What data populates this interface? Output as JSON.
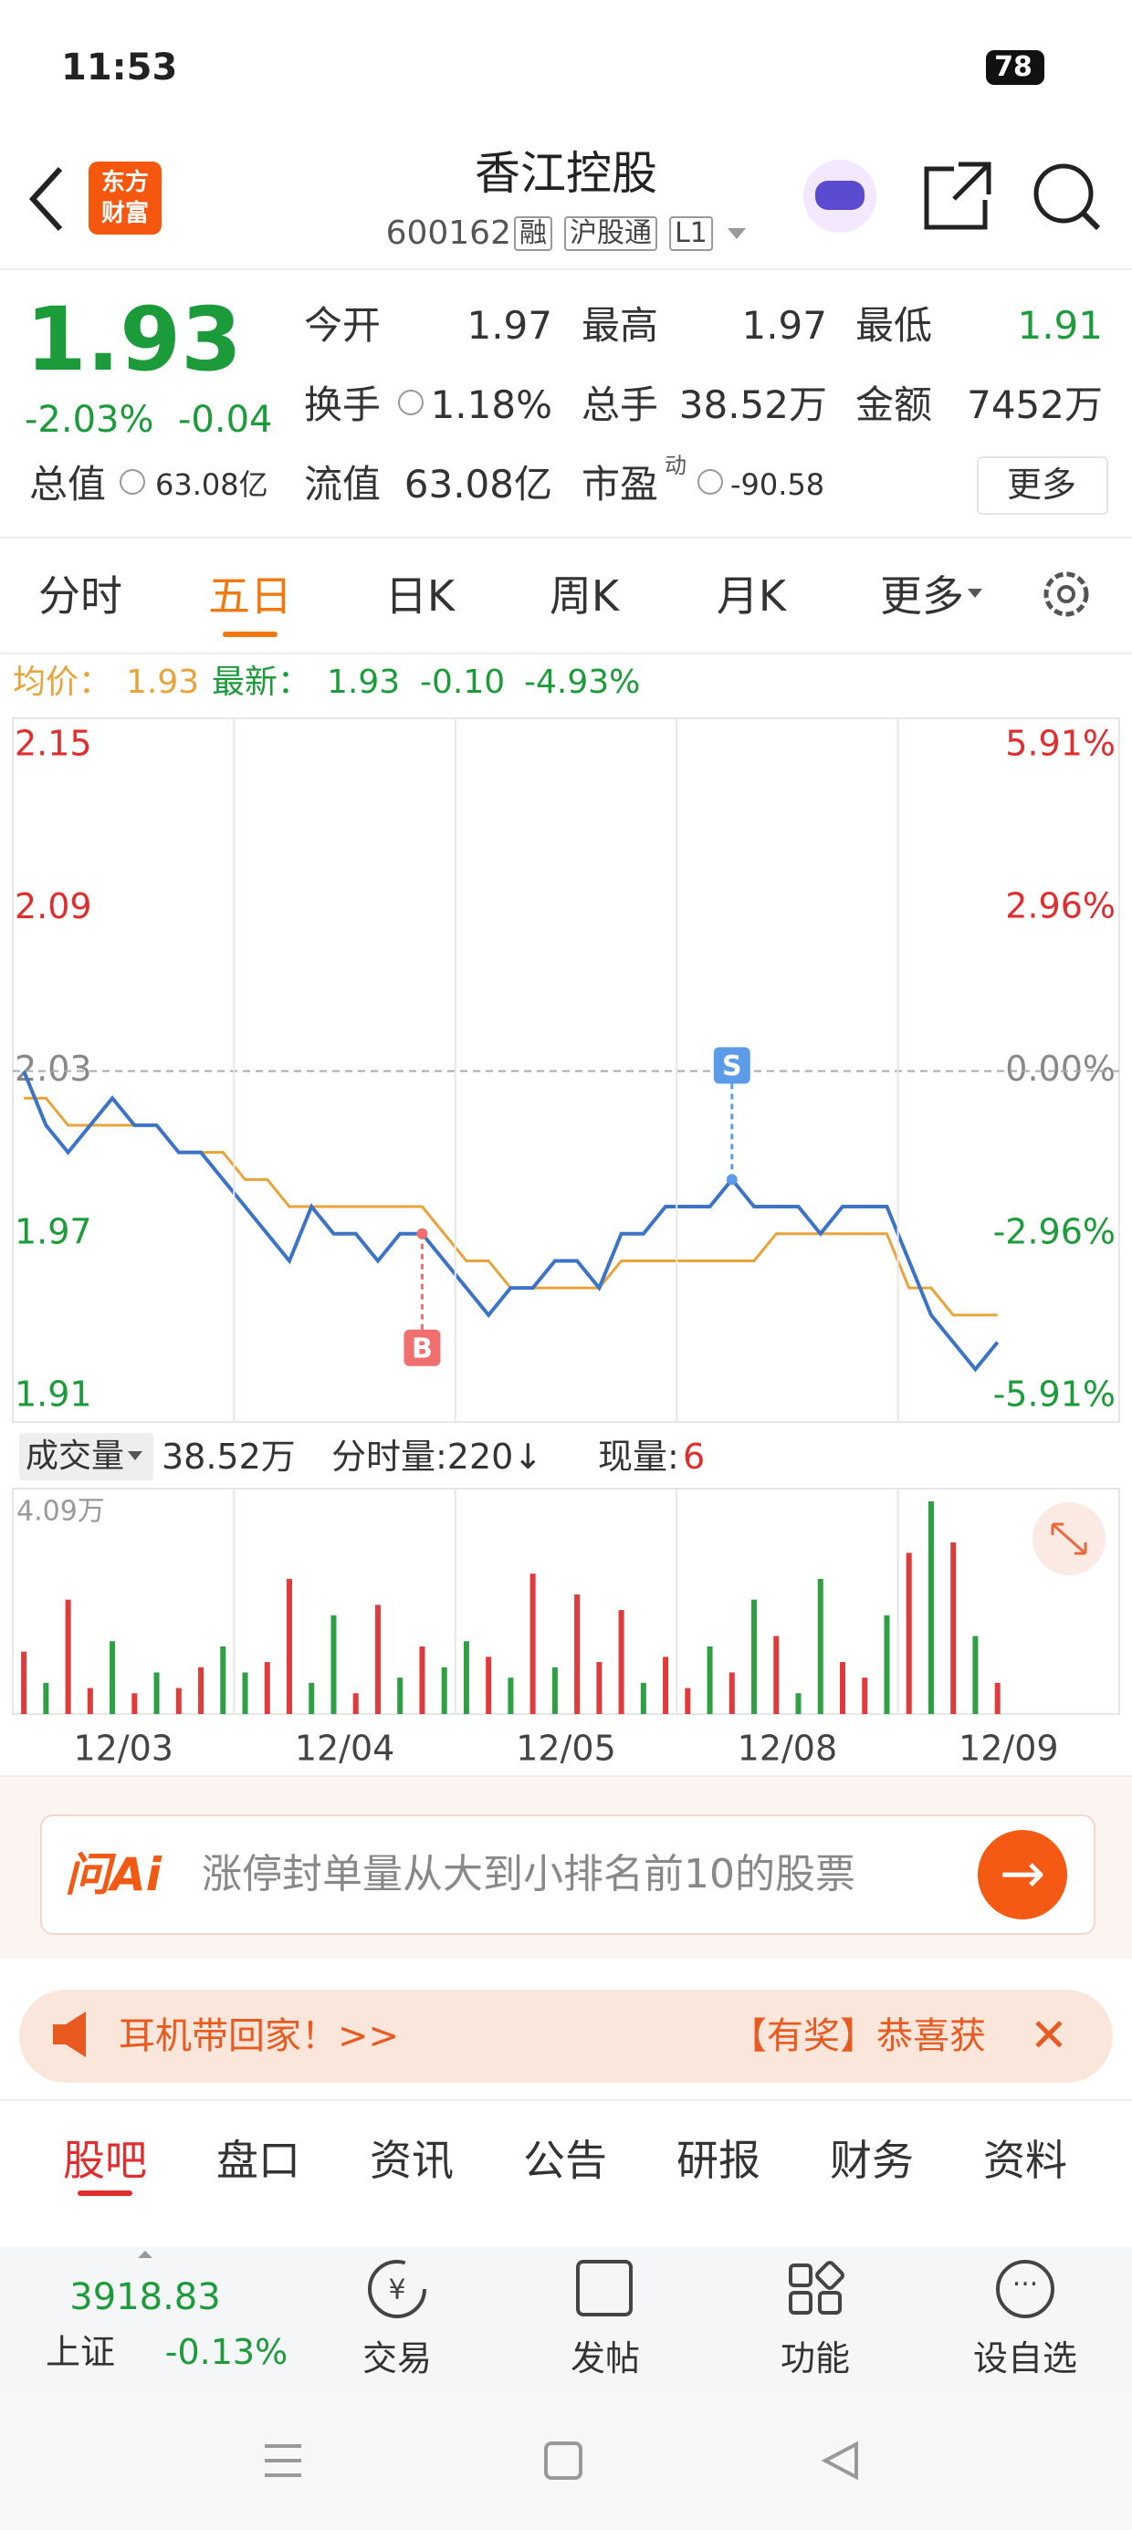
{
  "status_bar": {
    "time": "11:53",
    "battery": "78"
  },
  "header": {
    "logo": [
      "东方",
      "财富"
    ],
    "title": "香江控股",
    "code": "600162",
    "tags": [
      "融",
      "沪股通",
      "L1"
    ]
  },
  "quote": {
    "price": "1.93",
    "change_pct": "-2.03%",
    "change": "-0.04",
    "fields": [
      {
        "label": "今开",
        "value": "1.97"
      },
      {
        "label": "最高",
        "value": "1.97"
      },
      {
        "label": "最低",
        "value": "1.91"
      },
      {
        "label": "换手",
        "value": "1.18%"
      },
      {
        "label": "总手",
        "value": "38.52万"
      },
      {
        "label": "金额",
        "value": "7452万"
      },
      {
        "label": "总值",
        "value": "63.08亿"
      },
      {
        "label": "流值",
        "value": "63.08亿"
      },
      {
        "label": "市盈",
        "label_sup": "动",
        "value": "-90.58"
      }
    ],
    "more": "更多"
  },
  "tabs": {
    "items": [
      "分时",
      "五日",
      "日K",
      "周K",
      "月K",
      "更多"
    ],
    "active": 1
  },
  "chart_info": {
    "avg_label": "均价：",
    "avg": "1.93",
    "latest_label": "最新：",
    "latest": "1.93",
    "change": "-0.10",
    "change_pct": "-4.93%"
  },
  "chart_data": [
    {
      "type": "line",
      "ylim": [
        1.91,
        2.15
      ],
      "yticks": [
        2.15,
        2.09,
        2.03,
        1.97,
        1.91
      ],
      "y2lim": [
        -5.91,
        5.91
      ],
      "y2ticks": [
        {
          "value": 5.91,
          "label": "5.91%"
        },
        {
          "value": 2.96,
          "label": "2.96%"
        },
        {
          "value": 0,
          "label": "0.00%"
        },
        {
          "value": -2.96,
          "label": "-2.96%"
        },
        {
          "value": -5.91,
          "label": "-5.91%"
        }
      ],
      "up_color": "#e02d2d",
      "down_color": "#1c9b3a",
      "zero_color": "#888888",
      "xlim": [
        -0.5,
        49.5
      ],
      "x": [
        0,
        1,
        2,
        3,
        4,
        5,
        6,
        7,
        8,
        9,
        10,
        11,
        12,
        13,
        14,
        15,
        16,
        17,
        18,
        19,
        20,
        21,
        22,
        23,
        24,
        25,
        26,
        27,
        28,
        29,
        30,
        31,
        32,
        33,
        34,
        35,
        36,
        37,
        38,
        39,
        40,
        41,
        42,
        43,
        44
      ],
      "series": [
        {
          "color": "#3b73c6",
          "values": [
            2.03,
            2.01,
            2.0,
            2.01,
            2.02,
            2.01,
            2.01,
            2.0,
            2.0,
            1.99,
            1.98,
            1.97,
            1.96,
            1.98,
            1.97,
            1.97,
            1.96,
            1.97,
            1.97,
            1.96,
            1.95,
            1.94,
            1.95,
            1.95,
            1.96,
            1.96,
            1.95,
            1.97,
            1.97,
            1.98,
            1.98,
            1.98,
            1.99,
            1.98,
            1.98,
            1.98,
            1.97,
            1.98,
            1.98,
            1.98,
            1.96,
            1.94,
            1.93,
            1.92,
            1.93
          ]
        },
        {
          "color": "#e8a33a",
          "values": [
            2.02,
            2.02,
            2.01,
            2.01,
            2.01,
            2.01,
            2.01,
            2.0,
            2.0,
            2.0,
            1.99,
            1.99,
            1.98,
            1.98,
            1.98,
            1.98,
            1.98,
            1.98,
            1.98,
            1.97,
            1.96,
            1.96,
            1.95,
            1.95,
            1.95,
            1.95,
            1.95,
            1.96,
            1.96,
            1.96,
            1.96,
            1.96,
            1.96,
            1.96,
            1.97,
            1.97,
            1.97,
            1.97,
            1.97,
            1.97,
            1.95,
            1.95,
            1.94,
            1.94,
            1.94
          ]
        }
      ],
      "annotations": [
        {
          "text": "B",
          "color": "#f07070",
          "x": 18,
          "y": 1.97,
          "side": "below"
        },
        {
          "text": "S",
          "color": "#5b9be8",
          "x": 32,
          "y": 1.99,
          "side": "above"
        }
      ]
    },
    {
      "type": "bar",
      "ylim": [
        0,
        4.09
      ],
      "yticks": [
        {
          "value": 4.09,
          "label": "4.09万"
        }
      ],
      "xlim": [
        -0.5,
        49.5
      ],
      "xticks": [
        {
          "value": 4.5,
          "label": "12/03"
        },
        {
          "value": 14.5,
          "label": "12/04"
        },
        {
          "value": 24.5,
          "label": "12/05"
        },
        {
          "value": 34.5,
          "label": "12/08"
        },
        {
          "value": 44.5,
          "label": "12/09"
        }
      ],
      "x": [
        0,
        1,
        2,
        3,
        4,
        5,
        6,
        7,
        8,
        9,
        10,
        11,
        12,
        13,
        14,
        15,
        16,
        17,
        18,
        19,
        20,
        21,
        22,
        23,
        24,
        25,
        26,
        27,
        28,
        29,
        30,
        31,
        32,
        33,
        34,
        35,
        36,
        37,
        38,
        39,
        40,
        41,
        42,
        43,
        44
      ],
      "values": [
        1.2,
        0.6,
        2.2,
        0.5,
        1.4,
        0.4,
        0.8,
        0.5,
        0.9,
        1.3,
        0.8,
        1.0,
        2.6,
        0.6,
        1.9,
        0.4,
        2.1,
        0.7,
        1.3,
        0.9,
        1.4,
        1.1,
        0.7,
        2.7,
        0.9,
        2.3,
        1.0,
        2.0,
        0.6,
        1.1,
        0.5,
        1.3,
        0.8,
        2.2,
        1.5,
        0.4,
        2.6,
        1.0,
        0.7,
        1.9,
        3.1,
        4.09,
        3.3,
        1.5,
        0.6
      ],
      "colors": [
        "#e03a3a",
        "#2ea043",
        "#e03a3a",
        "#e03a3a",
        "#2ea043",
        "#e03a3a",
        "#2ea043",
        "#e03a3a",
        "#e03a3a",
        "#2ea043",
        "#2ea043",
        "#e03a3a",
        "#e03a3a",
        "#2ea043",
        "#2ea043",
        "#e03a3a",
        "#e03a3a",
        "#2ea043",
        "#e03a3a",
        "#2ea043",
        "#2ea043",
        "#e03a3a",
        "#2ea043",
        "#e03a3a",
        "#2ea043",
        "#e03a3a",
        "#e03a3a",
        "#e03a3a",
        "#2ea043",
        "#e03a3a",
        "#e03a3a",
        "#2ea043",
        "#e03a3a",
        "#2ea043",
        "#e03a3a",
        "#2ea043",
        "#2ea043",
        "#e03a3a",
        "#e03a3a",
        "#2ea043",
        "#e03a3a",
        "#2ea043",
        "#e03a3a",
        "#2ea043",
        "#e03a3a"
      ]
    }
  ],
  "volume_info": {
    "label": "成交量",
    "total": "38.52万",
    "period_label": "分时量:220↓",
    "now_label": "现量:",
    "now": "6"
  },
  "ai_search": {
    "logo": "问Ai",
    "placeholder": "涨停封单量从大到小排名前10的股票"
  },
  "banner": {
    "left": "耳机带回家！>>",
    "right": "【有奖】恭喜获"
  },
  "section_tabs": {
    "items": [
      "股吧",
      "盘口",
      "资讯",
      "公告",
      "研报",
      "财务",
      "资料"
    ],
    "active": 0
  },
  "bottom_bar": {
    "index_value": "3918.83",
    "index_name": "上证",
    "index_change": "-0.13%",
    "items": [
      "交易",
      "发帖",
      "功能",
      "设自选"
    ]
  }
}
